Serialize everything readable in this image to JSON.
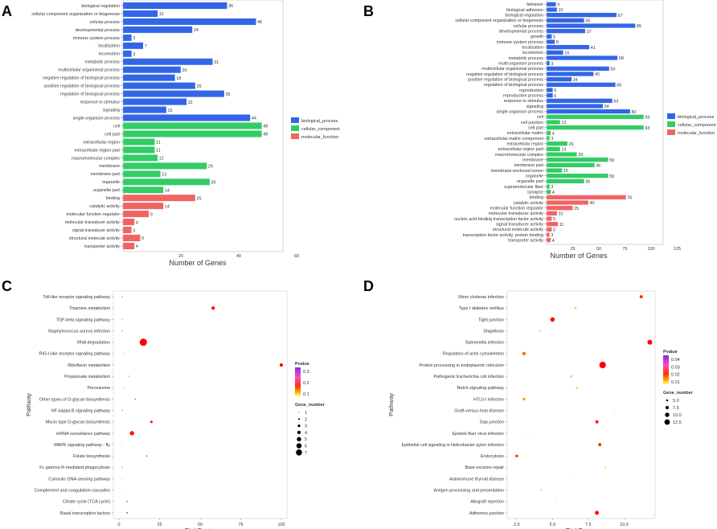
{
  "panels": {
    "A": "A",
    "B": "B",
    "C": "C",
    "D": "D"
  },
  "colors": {
    "biological_process": "#3366e6",
    "cellular_component": "#33cc66",
    "molecular_function": "#f06464",
    "bar_stroke": "#ffffff",
    "point_high": "#ff0000",
    "point_low": "#ffff99",
    "grad_top": "#8a2be2"
  },
  "chart_data": [
    {
      "panel": "A",
      "type": "bar",
      "orientation": "horizontal",
      "xlabel": "Number of Genes",
      "ylabel": "",
      "xlim": [
        0,
        60
      ],
      "xticks": [
        20,
        40,
        60
      ],
      "legend": [
        {
          "name": "biological_process",
          "color": "#3366e6"
        },
        {
          "name": "cellular_component",
          "color": "#33cc66"
        },
        {
          "name": "molecular_function",
          "color": "#f06464"
        }
      ],
      "categories": [
        "biological regulation",
        "cellular component organization or biogenesis",
        "cellular process",
        "developmental process",
        "immune system process",
        "localization",
        "locomotion",
        "metabolic process",
        "multicellular organismal process",
        "negative regulation of biological process",
        "positive regulation of biological process",
        "regulation of biological process",
        "response to stimulus",
        "signaling",
        "single-organism process",
        "cell",
        "cell part",
        "extracellular region",
        "extracellular region part",
        "macromolecular complex",
        "membrane",
        "membrane part",
        "organelle",
        "organelle part",
        "binding",
        "catalytic activity",
        "molecular function regulator",
        "molecular transducer activity",
        "signal transducer activity",
        "structural molecule activity",
        "transporter activity"
      ],
      "values": [
        36,
        12,
        46,
        24,
        3,
        7,
        3,
        31,
        20,
        18,
        25,
        35,
        22,
        15,
        44,
        48,
        48,
        11,
        11,
        12,
        29,
        13,
        30,
        14,
        25,
        14,
        9,
        4,
        3,
        6,
        4
      ],
      "groups": [
        "biological_process",
        "biological_process",
        "biological_process",
        "biological_process",
        "biological_process",
        "biological_process",
        "biological_process",
        "biological_process",
        "biological_process",
        "biological_process",
        "biological_process",
        "biological_process",
        "biological_process",
        "biological_process",
        "biological_process",
        "cellular_component",
        "cellular_component",
        "cellular_component",
        "cellular_component",
        "cellular_component",
        "cellular_component",
        "cellular_component",
        "cellular_component",
        "cellular_component",
        "molecular_function",
        "molecular_function",
        "molecular_function",
        "molecular_function",
        "molecular_function",
        "molecular_function",
        "molecular_function"
      ]
    },
    {
      "panel": "B",
      "type": "bar",
      "orientation": "horizontal",
      "xlabel": "Number of Genes",
      "ylabel": "",
      "xlim": [
        0,
        125
      ],
      "xticks": [
        25,
        50,
        75,
        100,
        125
      ],
      "legend": [
        {
          "name": "biological_process",
          "color": "#3366e6"
        },
        {
          "name": "cellular_component",
          "color": "#33cc66"
        },
        {
          "name": "molecular_function",
          "color": "#f06464"
        }
      ],
      "categories": [
        "behavior",
        "biological adhesion",
        "biological regulation",
        "cellular component organization or biogenesis",
        "cellular process",
        "developmental process",
        "growth",
        "immune system process",
        "localization",
        "locomotion",
        "metabolic process",
        "multi-organism process",
        "multicellular organismal process",
        "negative regulation of biological process",
        "positive regulation of biological process",
        "regulation of biological process",
        "reproduction",
        "reproductive process",
        "response to stimulus",
        "signaling",
        "single-organism process",
        "cell",
        "cell junction",
        "cell part",
        "extracellular matrix",
        "extracellular matrix component",
        "extracellular region",
        "extracellular region part",
        "macromolecular complex",
        "membrane",
        "membrane part",
        "membrane-enclosed lumen",
        "organelle",
        "organelle part",
        "supramolecular fiber",
        "synapse",
        "binding",
        "catalytic activity",
        "molecular function regulator",
        "molecular transducer activity",
        "nucleic acid binding transcription factor activity",
        "signal transducer activity",
        "structural molecule activity",
        "transcription factor activity, protein binding",
        "transporter activity"
      ],
      "values": [
        9,
        10,
        67,
        36,
        85,
        37,
        5,
        8,
        41,
        16,
        68,
        3,
        60,
        45,
        24,
        66,
        6,
        6,
        63,
        54,
        80,
        93,
        13,
        93,
        4,
        3,
        20,
        13,
        29,
        59,
        46,
        15,
        59,
        36,
        3,
        4,
        76,
        40,
        25,
        10,
        5,
        11,
        5,
        3,
        4
      ],
      "groups": [
        "biological_process",
        "biological_process",
        "biological_process",
        "biological_process",
        "biological_process",
        "biological_process",
        "biological_process",
        "biological_process",
        "biological_process",
        "biological_process",
        "biological_process",
        "biological_process",
        "biological_process",
        "biological_process",
        "biological_process",
        "biological_process",
        "biological_process",
        "biological_process",
        "biological_process",
        "biological_process",
        "biological_process",
        "cellular_component",
        "cellular_component",
        "cellular_component",
        "cellular_component",
        "cellular_component",
        "cellular_component",
        "cellular_component",
        "cellular_component",
        "cellular_component",
        "cellular_component",
        "cellular_component",
        "cellular_component",
        "cellular_component",
        "cellular_component",
        "cellular_component",
        "molecular_function",
        "molecular_function",
        "molecular_function",
        "molecular_function",
        "molecular_function",
        "molecular_function",
        "molecular_function",
        "molecular_function",
        "molecular_function"
      ]
    },
    {
      "panel": "C",
      "type": "scatter",
      "xlabel": "RichFactor",
      "ylabel": "Pathway",
      "xlim": [
        0,
        100
      ],
      "xticks": [
        0,
        25,
        50,
        75,
        100
      ],
      "color_title": "Pvalue",
      "color_ticks": [
        "0.3",
        "0.2",
        "0.1"
      ],
      "color_range": [
        0,
        0.35
      ],
      "size_title": "Gene_number",
      "size_legend": [
        "1",
        "2",
        "3",
        "4",
        "5",
        "6",
        "7"
      ],
      "categories": [
        "Toll-like receptor signaling pathway",
        "Thiamine metabolism",
        "TGF-beta signaling pathway",
        "Staphylococcus aureus infection",
        "RNA degradation",
        "RIG-I-like receptor signaling pathway",
        "Riboflavin metabolism",
        "Propanoate metabolism",
        "Peroxisome",
        "Other types of O-glycan biosynthesis",
        "NF-kappa B signaling pathway",
        "Mucin type O-glycan biosynthesis",
        "mRNA surveillance pathway",
        "MAPK signaling pathway - fly",
        "Folate biosynthesis",
        "Fc gamma R-mediated phagocytosis",
        "Cytosolic DNA-sensing pathway",
        "Complement and coagulation cascades",
        "Citrate cycle (TCA cycle)",
        "Basal transcription factors"
      ],
      "x": [
        2,
        58,
        2,
        2,
        15,
        3,
        100,
        6,
        3,
        10,
        2,
        20,
        8,
        2,
        17,
        2,
        2,
        2,
        5,
        5
      ],
      "gene_number": [
        1,
        3,
        1,
        1,
        7,
        1,
        3,
        1,
        1,
        1,
        1,
        2,
        4,
        1,
        1,
        1,
        1,
        1,
        1,
        1
      ],
      "pvalue": [
        0.22,
        0.01,
        0.25,
        0.2,
        0.001,
        0.3,
        0.01,
        0.2,
        0.25,
        0.12,
        0.22,
        0.02,
        0.02,
        0.3,
        0.1,
        0.22,
        0.3,
        0.33,
        0.1,
        0.05
      ]
    },
    {
      "panel": "D",
      "type": "scatter",
      "xlabel": "RichFactor",
      "ylabel": "Pathway",
      "xlim": [
        2,
        12
      ],
      "xticks": [
        2.5,
        5.0,
        7.5,
        10.0
      ],
      "color_title": "Pvalue",
      "color_ticks": [
        "0.04",
        "0.03",
        "0.02",
        "0.01"
      ],
      "color_range": [
        0,
        0.04
      ],
      "size_title": "Gene_number",
      "size_legend": [
        "5.0",
        "7.5",
        "10.0",
        "12.5"
      ],
      "categories": [
        "Vibrio cholerae infection",
        "Type I diabetes mellitus",
        "Tight junction",
        "Shigellosis",
        "Salmonella infection",
        "Regulation of actin cytoskeleton",
        "Protein processing in endoplasmic reticulum",
        "Pathogenic Escherichia coli infection",
        "Notch signaling pathway",
        "HTLV-I infection",
        "Graft-versus-host disease",
        "Gap junction",
        "Epstein-Barr virus infection",
        "Epithelial cell signaling in Helicobacter pylori infection",
        "Endocytosis",
        "Base excision repair",
        "Autoimmune thyroid disease",
        "Antigen processing and presentation",
        "Allograft rejection",
        "Adherens junction"
      ],
      "x": [
        11.2,
        6.6,
        5.0,
        4.1,
        11.8,
        3.0,
        8.5,
        6.3,
        6.7,
        3.0,
        9.3,
        8.1,
        3.3,
        8.3,
        2.5,
        8.7,
        6.5,
        4.2,
        5.3,
        8.1
      ],
      "gene_number": [
        5,
        3,
        8,
        3,
        9,
        6,
        13,
        3,
        3,
        4,
        3,
        5,
        3,
        5,
        4,
        3,
        2,
        3,
        3,
        7
      ],
      "pvalue": [
        0.005,
        0.03,
        0.002,
        0.035,
        0.001,
        0.015,
        0.0001,
        0.03,
        0.03,
        0.02,
        0.04,
        0.003,
        0.04,
        0.005,
        0.006,
        0.035,
        0.04,
        0.035,
        0.04,
        0.002
      ]
    }
  ]
}
